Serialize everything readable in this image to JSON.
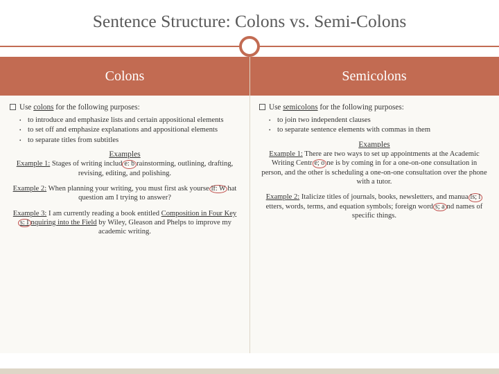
{
  "title": "Sentence Structure: Colons vs. Semi-Colons",
  "colors": {
    "accent": "#c26b52",
    "band": "#c26b52",
    "circle": "#c0504d",
    "footer": "#ded6c7",
    "content_bg": "#faf9f5",
    "text": "#595959"
  },
  "left": {
    "header": "Colons",
    "intro_prefix": "Use ",
    "intro_keyword": "colons",
    "intro_suffix": " for the following purposes:",
    "bullets": [
      "to introduce and emphasize lists and certain appositional elements",
      "to set off and emphasize explanations and appositional elements",
      "to separate titles from subtitles"
    ],
    "examples_label": "Examples",
    "ex1_label": "Example 1:",
    "ex1_a": " Stages of writing includ",
    "ex1_circ": "e: b",
    "ex1_b": "rainstorming, outlining, drafting, revising, editing, and polishing.",
    "ex2_label": "Example 2:",
    "ex2_a": " When planning your writing, you must first ask yourse",
    "ex2_circ": "lf: W",
    "ex2_b": "hat question am I trying to answer?",
    "ex3_label": "Example 3:",
    "ex3_a": " I am currently reading a book entitled ",
    "ex3_title_a": "Composition in Four Key",
    "ex3_circ": "s: I",
    "ex3_title_b": "nquiring into the Field",
    "ex3_b": " by Wiley, Gleason and Phelps to improve my academic writing."
  },
  "right": {
    "header": "Semicolons",
    "intro_prefix": "Use ",
    "intro_keyword": "semicolons",
    "intro_suffix": " for the following purposes:",
    "bullets": [
      "to join two independent clauses",
      "to separate sentence elements with commas in them"
    ],
    "examples_label": "Examples",
    "ex1_label": "Example 1:",
    "ex1_a": " There are two ways to set up appointments at the Academic Writing Centr",
    "ex1_circ": "e; o",
    "ex1_b": "ne is by coming in for a one-on-one consultation in person, and the other is scheduling a one-on-one consultation over the phone with a tutor.",
    "ex2_label": "Example 2:",
    "ex2_a": " Italicize titles of journals, books, newsletters, and manua",
    "ex2_circ1": "ls; l",
    "ex2_b": "etters, words, terms, and equation symbols; foreign word",
    "ex2_circ2": "s; a",
    "ex2_c": "nd names of specific things."
  }
}
